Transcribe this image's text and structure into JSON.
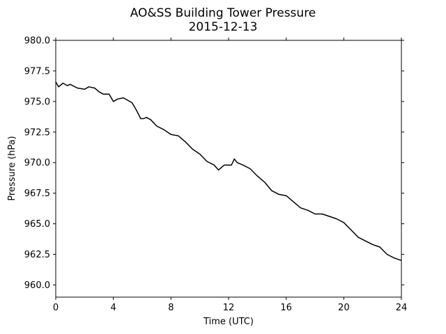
{
  "chart_data": {
    "type": "line",
    "title": "AO&SS Building Tower Pressure",
    "subtitle": "2015-12-13",
    "xlabel": "Time (UTC)",
    "ylabel": "Pressure (hPa)",
    "xlim": [
      0,
      24
    ],
    "ylim": [
      959.0,
      980.0
    ],
    "x_ticks": [
      0,
      4,
      8,
      12,
      16,
      20,
      24
    ],
    "y_ticks": [
      960.0,
      962.5,
      965.0,
      967.5,
      970.0,
      972.5,
      975.0,
      977.5,
      980.0
    ],
    "y_tick_labels": [
      "960.0",
      "962.5",
      "965.0",
      "967.5",
      "970.0",
      "972.5",
      "975.0",
      "977.5",
      "980.0"
    ],
    "grid": false,
    "series_color": "#000000",
    "series": [
      {
        "x": [
          0,
          0.2,
          0.5,
          0.8,
          1.0,
          1.5,
          2.0,
          2.3,
          2.7,
          3.0,
          3.3,
          3.7,
          4.0,
          4.3,
          4.7,
          5.0,
          5.3,
          5.6,
          5.9,
          6.1,
          6.3,
          6.6,
          7.0,
          7.5,
          8.0,
          8.5,
          9.0,
          9.5,
          10.0,
          10.5,
          11.0,
          11.3,
          11.7,
          12.0,
          12.2,
          12.4,
          12.6,
          13.0,
          13.5,
          14.0,
          14.5,
          15.0,
          15.5,
          16.0,
          16.5,
          17.0,
          17.5,
          18.0,
          18.5,
          19.0,
          19.5,
          20.0,
          20.5,
          21.0,
          21.5,
          22.0,
          22.5,
          23.0,
          23.5,
          24.0
        ],
        "values": [
          976.6,
          976.2,
          976.5,
          976.3,
          976.4,
          976.1,
          976.0,
          976.2,
          976.1,
          975.8,
          975.6,
          975.6,
          975.0,
          975.2,
          975.3,
          975.1,
          974.9,
          974.3,
          973.6,
          973.6,
          973.7,
          973.5,
          973.0,
          972.7,
          972.3,
          972.2,
          971.7,
          971.1,
          970.7,
          970.1,
          969.8,
          969.4,
          969.8,
          969.8,
          969.8,
          970.3,
          970.0,
          969.8,
          969.5,
          968.9,
          968.4,
          967.7,
          967.4,
          967.3,
          966.8,
          966.3,
          966.1,
          965.8,
          965.8,
          965.6,
          965.4,
          965.1,
          964.5,
          963.9,
          963.6,
          963.3,
          963.1,
          962.5,
          962.2,
          962.0
        ]
      }
    ]
  }
}
